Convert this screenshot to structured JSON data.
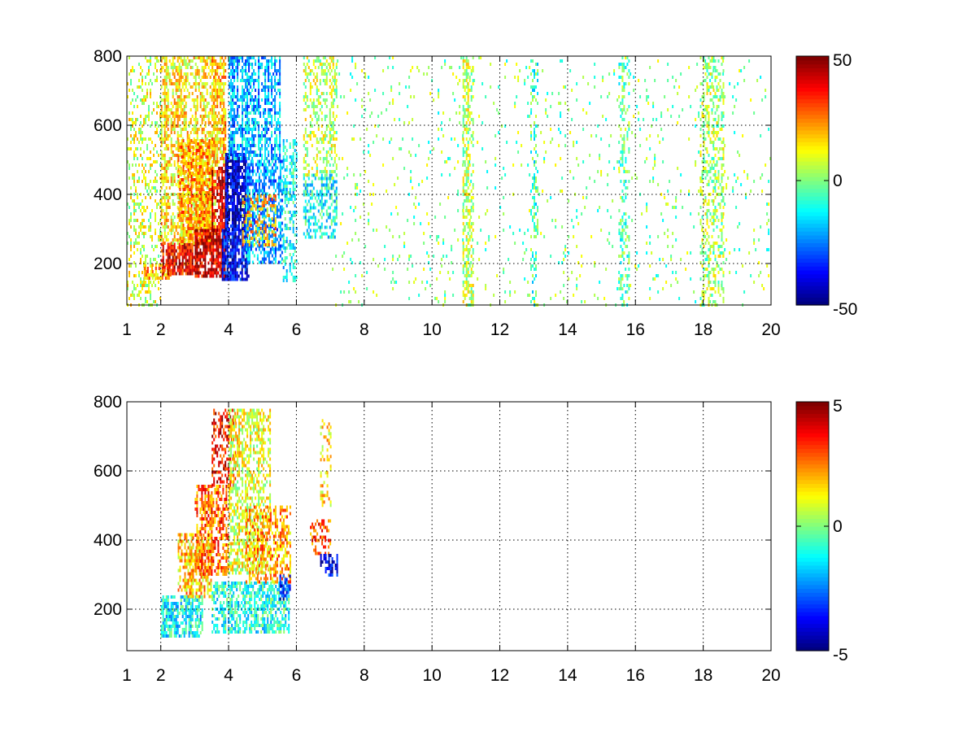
{
  "chart_data": [
    {
      "type": "heatmap",
      "title": "",
      "xlabel": "",
      "ylabel": "",
      "xlim": [
        1,
        20
      ],
      "ylim": [
        80,
        800
      ],
      "x_scale": "linear",
      "x_ticks": [
        1,
        2,
        4,
        6,
        8,
        10,
        12,
        14,
        16,
        18,
        20
      ],
      "x_tick_labels": [
        "1",
        "2",
        "4",
        "6",
        "8",
        "10",
        "12",
        "14",
        "16",
        "18",
        "20"
      ],
      "y_ticks": [
        200,
        400,
        600,
        800
      ],
      "y_tick_labels": [
        "200",
        "400",
        "600",
        "800"
      ],
      "grid": true,
      "colormap": "jet",
      "colorbar": {
        "position": "right",
        "min": -50,
        "max": 50,
        "ticks": [
          -50,
          0,
          50
        ],
        "tick_labels": [
          "-50",
          "0",
          "50"
        ]
      },
      "regions": [
        {
          "x": [
            1.0,
            2.0
          ],
          "y": [
            80,
            800
          ],
          "value": 8,
          "density": 0.25
        },
        {
          "x": [
            1.5,
            2.3
          ],
          "y": [
            160,
            200
          ],
          "value": 20,
          "density": 0.7
        },
        {
          "x": [
            2.0,
            3.0
          ],
          "y": [
            170,
            260
          ],
          "value": 38,
          "density": 0.85
        },
        {
          "x": [
            2.0,
            3.6
          ],
          "y": [
            260,
            800
          ],
          "value": 14,
          "density": 0.55
        },
        {
          "x": [
            2.5,
            3.5
          ],
          "y": [
            260,
            560
          ],
          "value": 22,
          "density": 0.7
        },
        {
          "x": [
            3.0,
            3.9
          ],
          "y": [
            160,
            300
          ],
          "value": 42,
          "density": 0.9
        },
        {
          "x": [
            3.5,
            3.9
          ],
          "y": [
            300,
            480
          ],
          "value": 40,
          "density": 0.85
        },
        {
          "x": [
            3.5,
            3.9
          ],
          "y": [
            480,
            800
          ],
          "value": 18,
          "density": 0.6
        },
        {
          "x": [
            3.8,
            4.6
          ],
          "y": [
            150,
            300
          ],
          "value": -38,
          "density": 0.85
        },
        {
          "x": [
            3.9,
            4.5
          ],
          "y": [
            300,
            520
          ],
          "value": -42,
          "density": 0.8
        },
        {
          "x": [
            4.0,
            5.5
          ],
          "y": [
            500,
            800
          ],
          "value": -20,
          "density": 0.6
        },
        {
          "x": [
            4.5,
            5.6
          ],
          "y": [
            200,
            500
          ],
          "value": -22,
          "density": 0.65
        },
        {
          "x": [
            4.4,
            5.4
          ],
          "y": [
            250,
            400
          ],
          "value": 20,
          "density": 0.35
        },
        {
          "x": [
            5.6,
            6.0
          ],
          "y": [
            150,
            560
          ],
          "value": -12,
          "density": 0.4
        },
        {
          "x": [
            6.2,
            7.2
          ],
          "y": [
            280,
            460
          ],
          "value": -12,
          "density": 0.5
        },
        {
          "x": [
            6.2,
            7.2
          ],
          "y": [
            460,
            800
          ],
          "value": 6,
          "density": 0.35
        },
        {
          "x": [
            7.0,
            20.0
          ],
          "y": [
            80,
            800
          ],
          "value": 0,
          "density": 0.04
        },
        {
          "x": [
            10.9,
            11.2
          ],
          "y": [
            80,
            800
          ],
          "value": 6,
          "density": 0.45
        },
        {
          "x": [
            12.9,
            13.1
          ],
          "y": [
            80,
            800
          ],
          "value": -6,
          "density": 0.45
        },
        {
          "x": [
            15.5,
            15.8
          ],
          "y": [
            80,
            800
          ],
          "value": -4,
          "density": 0.3
        },
        {
          "x": [
            17.9,
            18.6
          ],
          "y": [
            80,
            800
          ],
          "value": 4,
          "density": 0.35
        }
      ]
    },
    {
      "type": "heatmap",
      "title": "",
      "xlabel": "",
      "ylabel": "",
      "xlim": [
        1,
        20
      ],
      "ylim": [
        80,
        800
      ],
      "x_scale": "linear",
      "x_ticks": [
        1,
        2,
        4,
        6,
        8,
        10,
        12,
        14,
        16,
        18,
        20
      ],
      "x_tick_labels": [
        "1",
        "2",
        "4",
        "6",
        "8",
        "10",
        "12",
        "14",
        "16",
        "18",
        "20"
      ],
      "y_ticks": [
        200,
        400,
        600,
        800
      ],
      "y_tick_labels": [
        "200",
        "400",
        "600",
        "800"
      ],
      "grid": true,
      "colormap": "jet",
      "colorbar": {
        "position": "right",
        "min": -5,
        "max": 5,
        "ticks": [
          -5,
          0,
          5
        ],
        "tick_labels": [
          "-5",
          "0",
          "5"
        ]
      },
      "regions": [
        {
          "x": [
            2.0,
            3.2
          ],
          "y": [
            120,
            240
          ],
          "value": -1.2,
          "density": 0.7
        },
        {
          "x": [
            2.5,
            3.5
          ],
          "y": [
            240,
            420
          ],
          "value": 1.8,
          "density": 0.6
        },
        {
          "x": [
            3.0,
            4.0
          ],
          "y": [
            300,
            560
          ],
          "value": 2.8,
          "density": 0.6
        },
        {
          "x": [
            3.5,
            4.2
          ],
          "y": [
            560,
            780
          ],
          "value": 3.8,
          "density": 0.45
        },
        {
          "x": [
            3.5,
            5.8
          ],
          "y": [
            130,
            280
          ],
          "value": -1.0,
          "density": 0.6
        },
        {
          "x": [
            4.0,
            5.2
          ],
          "y": [
            300,
            780
          ],
          "value": 1.0,
          "density": 0.5
        },
        {
          "x": [
            4.5,
            5.8
          ],
          "y": [
            280,
            500
          ],
          "value": 2.2,
          "density": 0.5
        },
        {
          "x": [
            5.5,
            5.8
          ],
          "y": [
            230,
            300
          ],
          "value": -3.5,
          "density": 0.6
        },
        {
          "x": [
            6.4,
            7.0
          ],
          "y": [
            360,
            460
          ],
          "value": 3.0,
          "density": 0.4
        },
        {
          "x": [
            6.7,
            7.2
          ],
          "y": [
            300,
            360
          ],
          "value": -4.0,
          "density": 0.6
        },
        {
          "x": [
            6.7,
            7.0
          ],
          "y": [
            500,
            750
          ],
          "value": 1.5,
          "density": 0.3
        }
      ]
    }
  ]
}
